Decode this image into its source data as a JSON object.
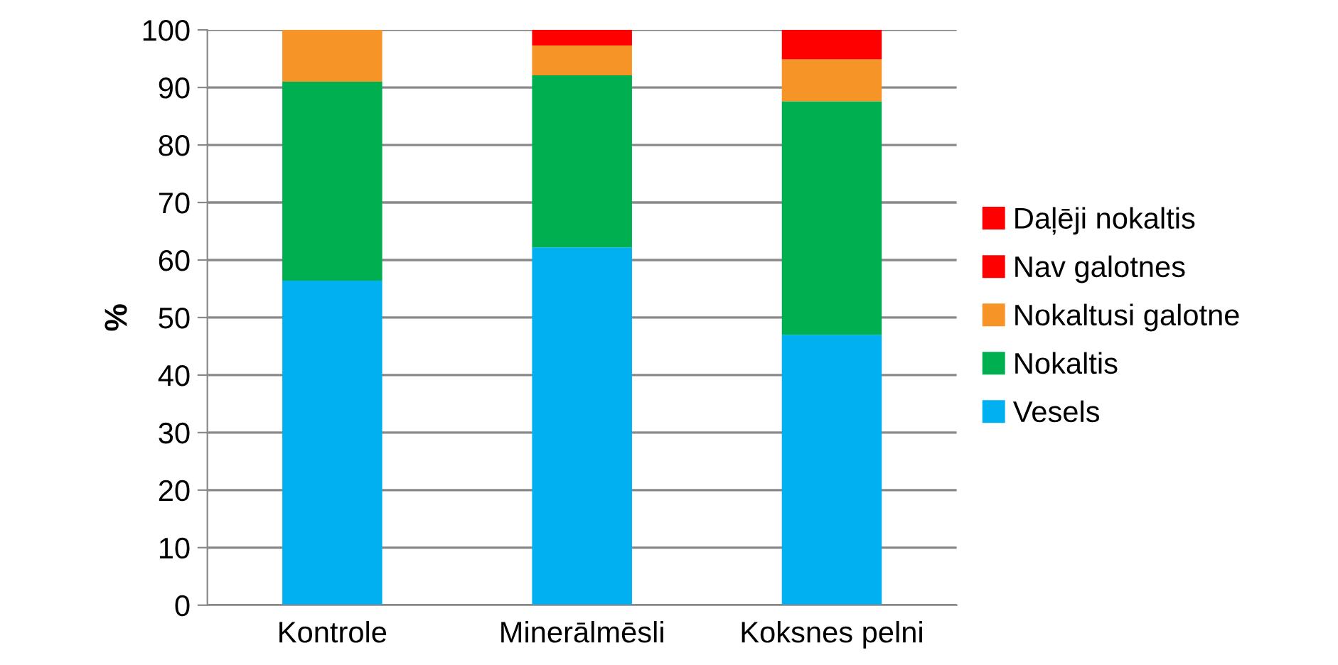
{
  "chart_data": {
    "type": "bar",
    "stacked": true,
    "ylabel": "%",
    "categories": [
      "Kontrole",
      "Minerālmēsli",
      "Koksnes pelni"
    ],
    "series": [
      {
        "name": "Vesels",
        "color": "#00b0f0",
        "values": [
          56.4,
          62.2,
          47.0
        ]
      },
      {
        "name": "Nokaltis",
        "color": "#00b050",
        "values": [
          34.6,
          29.9,
          40.6
        ]
      },
      {
        "name": "Nokaltusi galotne",
        "color": "#f79428",
        "values": [
          9.0,
          5.2,
          7.3
        ]
      },
      {
        "name": "Nav galotnes",
        "color": "#ff0000",
        "values": [
          0,
          2.7,
          5.1
        ]
      },
      {
        "name": "Daļēji nokaltis",
        "color": "#ff0000",
        "values": [
          0,
          0,
          0
        ]
      }
    ],
    "ylim": [
      0,
      100
    ],
    "yticks": [
      0,
      10,
      20,
      30,
      40,
      50,
      60,
      70,
      80,
      90,
      100
    ],
    "grid": "y",
    "legend": "right"
  }
}
